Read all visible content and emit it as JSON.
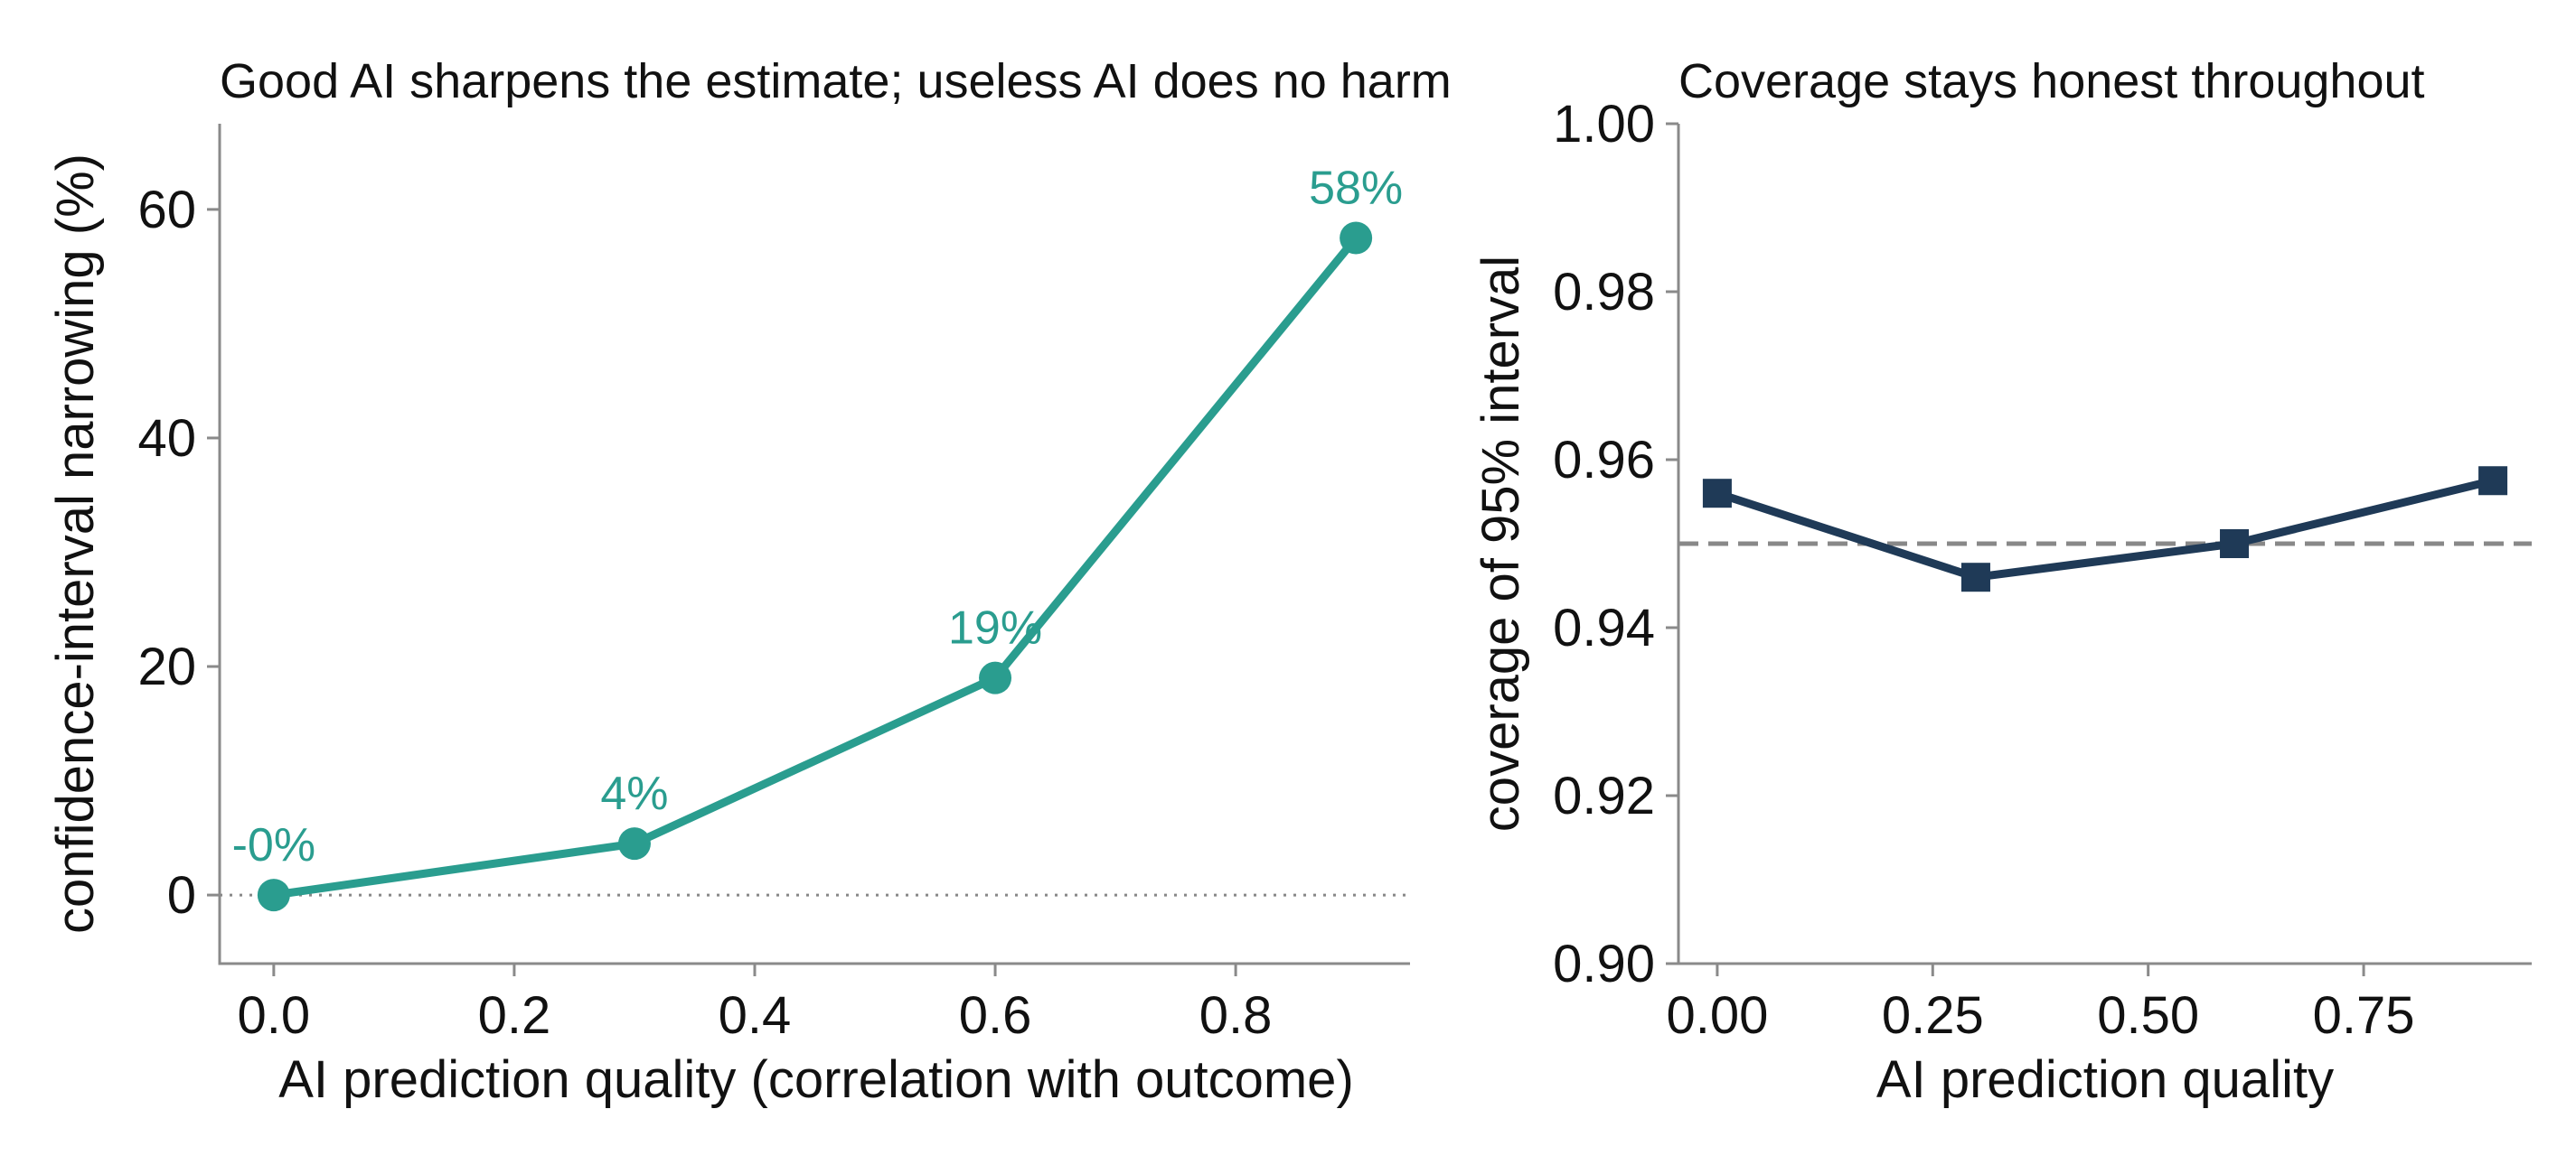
{
  "colors": {
    "left_series": "#2a9d8f",
    "right_series": "#1f3a57",
    "reference_line": "#888888",
    "axis": "#8a8a8a",
    "text": "#111111"
  },
  "chart_data": [
    {
      "type": "line",
      "title": "Good AI sharpens the estimate; useless AI does no harm",
      "xlabel": "AI prediction quality (correlation with outcome)",
      "ylabel": "confidence-interval narrowing (%)",
      "xlim": [
        -0.045,
        0.945
      ],
      "ylim": [
        -6,
        67.5
      ],
      "xticks": [
        0.0,
        0.2,
        0.4,
        0.6,
        0.8
      ],
      "xtick_labels": [
        "0.0",
        "0.2",
        "0.4",
        "0.6",
        "0.8"
      ],
      "yticks": [
        0,
        20,
        40,
        60
      ],
      "ytick_labels": [
        "0",
        "20",
        "40",
        "60"
      ],
      "grid": false,
      "reference_line": {
        "y": 0,
        "style": "dotted"
      },
      "marker": "circle",
      "series": [
        {
          "x": [
            0.0,
            0.3,
            0.6,
            0.9
          ],
          "values": [
            0,
            4.5,
            19,
            57.5
          ],
          "data_labels": [
            "-0%",
            "4%",
            "19%",
            "58%"
          ]
        }
      ]
    },
    {
      "type": "line",
      "title": "Coverage stays honest throughout",
      "xlabel": "AI prediction quality",
      "ylabel": "coverage of 95% interval",
      "xlim": [
        -0.045,
        0.945
      ],
      "ylim": [
        0.9,
        1.0
      ],
      "xticks": [
        0.0,
        0.25,
        0.5,
        0.75
      ],
      "xtick_labels": [
        "0.00",
        "0.25",
        "0.50",
        "0.75"
      ],
      "yticks": [
        0.9,
        0.92,
        0.94,
        0.96,
        0.98,
        1.0
      ],
      "ytick_labels": [
        "0.90",
        "0.92",
        "0.94",
        "0.96",
        "0.98",
        "1.00"
      ],
      "grid": false,
      "reference_line": {
        "y": 0.95,
        "style": "dashed"
      },
      "marker": "square",
      "series": [
        {
          "x": [
            0.0,
            0.3,
            0.6,
            0.9
          ],
          "values": [
            0.956,
            0.946,
            0.95,
            0.9575
          ]
        }
      ]
    }
  ]
}
